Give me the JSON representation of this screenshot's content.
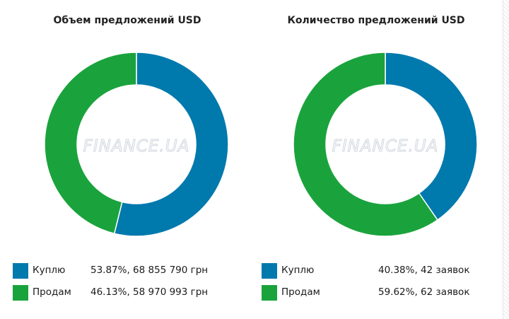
{
  "colors": {
    "buy": "#0079ad",
    "sell": "#1aa33c",
    "divider": "#ffffff"
  },
  "watermark": "FINANCE.UA",
  "legend": {
    "buy_label": "Куплю",
    "sell_label": "Продам"
  },
  "chart_data": [
    {
      "type": "pie",
      "title": "Объем предложений USD",
      "categories": [
        "Куплю",
        "Продам"
      ],
      "values": [
        53.87,
        46.13
      ],
      "value_labels": [
        "53.87%, 68 855 790 грн",
        "46.13%, 58 970 993 грн"
      ]
    },
    {
      "type": "pie",
      "title": "Количество предложений USD",
      "categories": [
        "Куплю",
        "Продам"
      ],
      "values": [
        40.38,
        59.62
      ],
      "value_labels": [
        "40.38%, 42 заявок",
        "59.62%, 62 заявок"
      ]
    }
  ]
}
